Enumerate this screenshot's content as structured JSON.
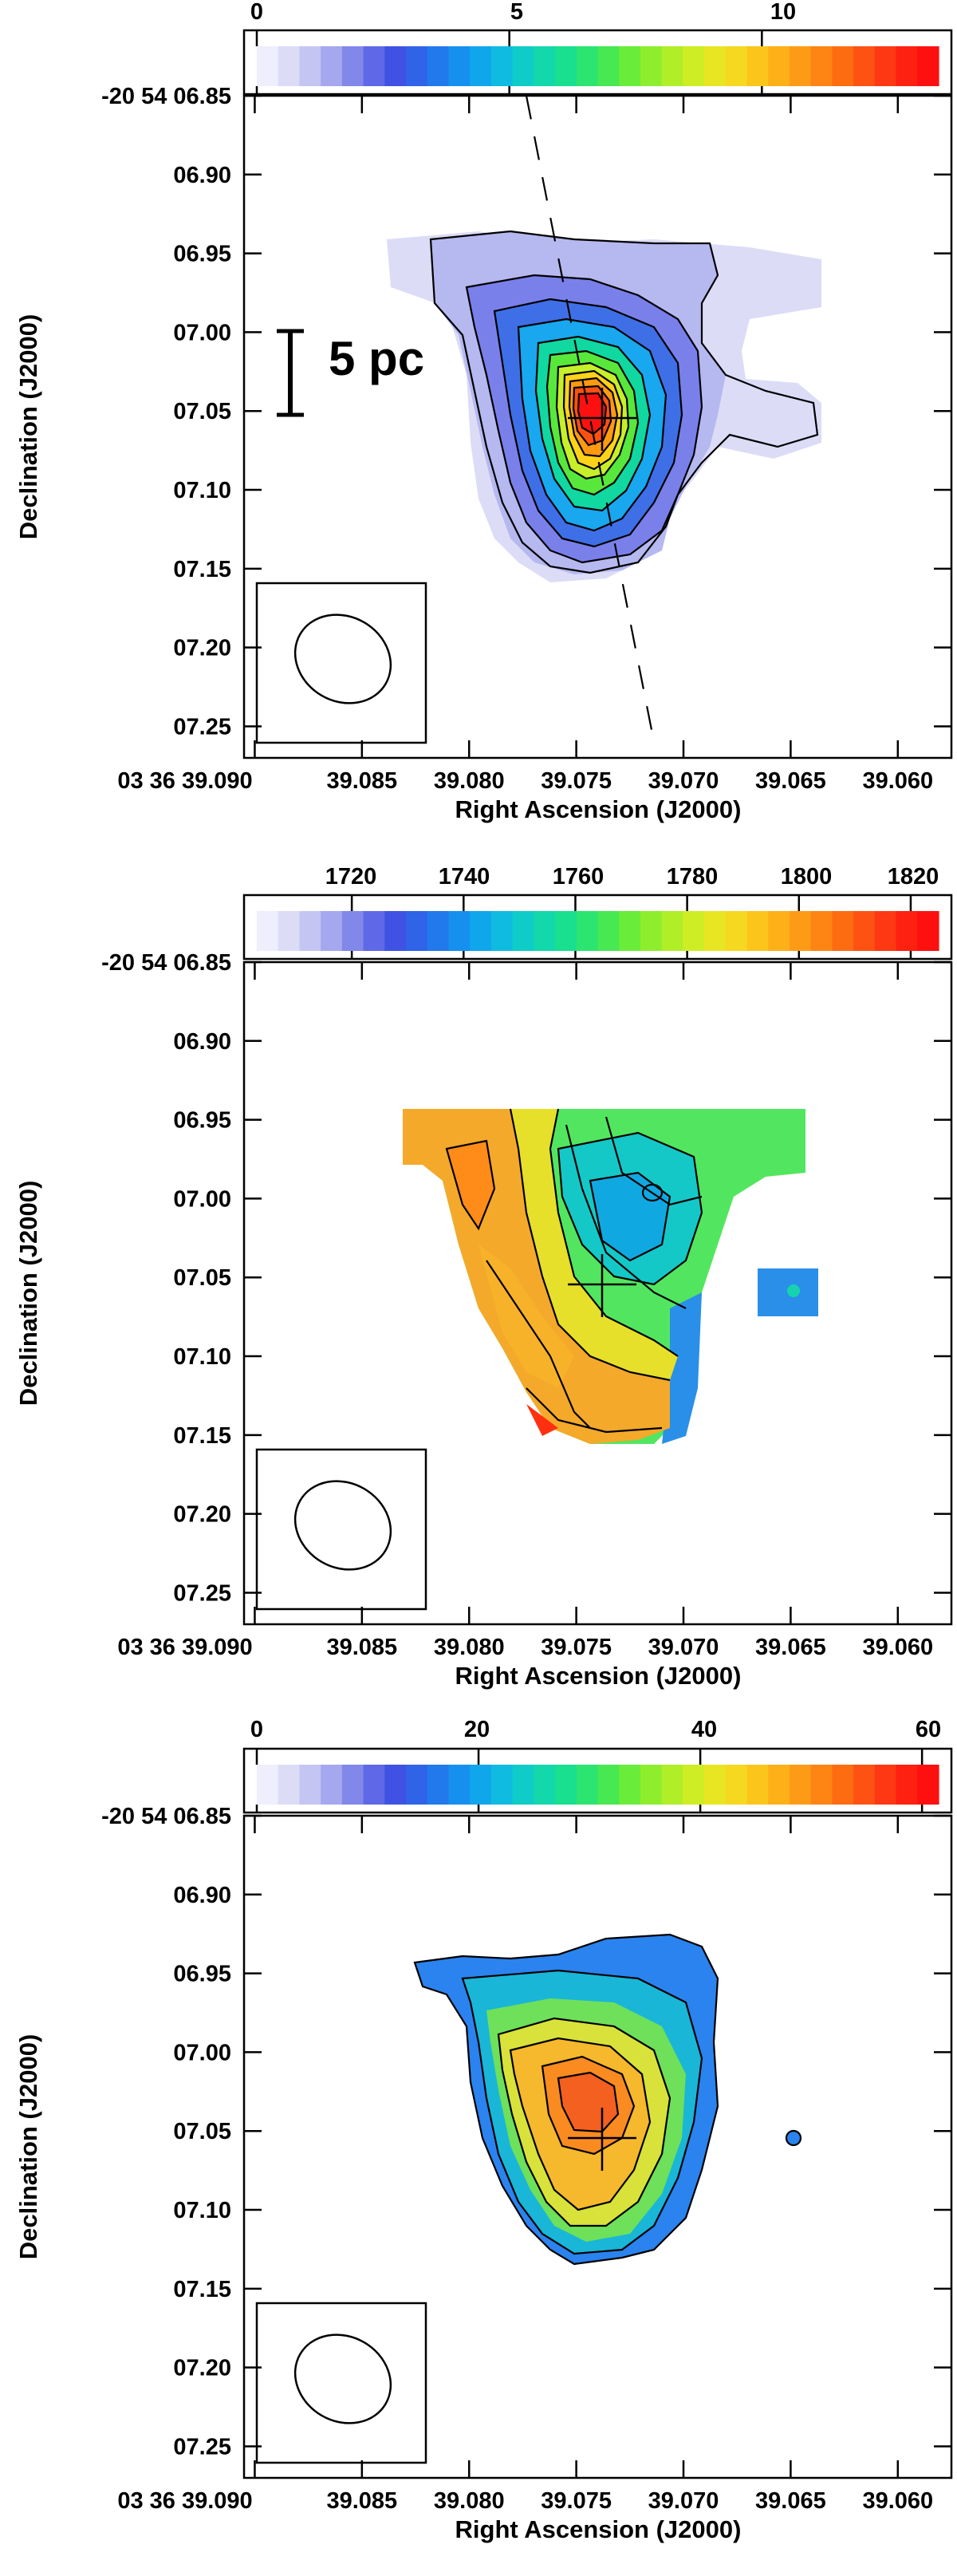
{
  "figure": {
    "panels": [
      {
        "colorbar": {
          "ticks": [
            "0",
            "5",
            "10"
          ],
          "min": 0,
          "max": 13.5
        },
        "ra_ticks": [
          "03 36 39.090",
          "39.085",
          "39.080",
          "39.075",
          "39.070",
          "39.065",
          "39.060"
        ],
        "dec_ticks": [
          "-20 54 06.85",
          "06.90",
          "06.95",
          "07.00",
          "07.05",
          "07.10",
          "07.15",
          "07.20",
          "07.25"
        ],
        "xlabel": "Right Ascension (J2000)",
        "ylabel": "Declination (J2000)",
        "scale_bar": "5 pc",
        "has_major_axis_line": true
      },
      {
        "colorbar": {
          "ticks": [
            "1720",
            "1740",
            "1760",
            "1780",
            "1800",
            "1820"
          ],
          "min": 1703,
          "max": 1825
        },
        "ra_ticks": [
          "03 36 39.090",
          "39.085",
          "39.080",
          "39.075",
          "39.070",
          "39.065",
          "39.060"
        ],
        "dec_ticks": [
          "-20 54 06.85",
          "06.90",
          "06.95",
          "07.00",
          "07.05",
          "07.10",
          "07.15",
          "07.20",
          "07.25"
        ],
        "xlabel": "Right Ascension (J2000)",
        "ylabel": "Declination (J2000)",
        "scale_bar": "",
        "has_major_axis_line": false
      },
      {
        "colorbar": {
          "ticks": [
            "0",
            "20",
            "40",
            "60"
          ],
          "min": 0,
          "max": 61.5
        },
        "ra_ticks": [
          "03 36 39.090",
          "39.085",
          "39.080",
          "39.075",
          "39.070",
          "39.065",
          "39.060"
        ],
        "dec_ticks": [
          "-20 54 06.85",
          "06.90",
          "06.95",
          "07.00",
          "07.05",
          "07.10",
          "07.15",
          "07.20",
          "07.25"
        ],
        "xlabel": "Right Ascension (J2000)",
        "ylabel": "Declination (J2000)",
        "scale_bar": "",
        "has_major_axis_line": false
      }
    ]
  },
  "chart_data": [
    {
      "type": "heatmap",
      "title": "",
      "xlabel": "Right Ascension (J2000)",
      "ylabel": "Declination (J2000)",
      "x_tick_labels": [
        "03 36 39.090",
        "39.085",
        "39.080",
        "39.075",
        "39.070",
        "39.065",
        "39.060"
      ],
      "y_tick_labels": [
        "-20 54 06.85",
        "06.90",
        "06.95",
        "07.00",
        "07.05",
        "07.10",
        "07.15",
        "07.20",
        "07.25"
      ],
      "xlim_seconds": [
        39.0905,
        39.0575
      ],
      "ylim_arcsec": [
        6.85,
        7.27
      ],
      "colorbar_ticks": [
        0,
        5,
        10
      ],
      "colorbar_range": [
        0,
        13.5
      ],
      "peak": {
        "ra_s": 39.0735,
        "dec_s": 7.055,
        "value": 13.2
      },
      "extent": {
        "ra_s": [
          39.0795,
          39.0643
        ],
        "dec_s": [
          6.95,
          7.15
        ]
      },
      "annotation": "5 pc",
      "colors": {
        "low": "#e8e8fb",
        "mid": "#10d8a0",
        "high": "#ff1010"
      }
    },
    {
      "type": "heatmap",
      "title": "",
      "xlabel": "Right Ascension (J2000)",
      "ylabel": "Declination (J2000)",
      "x_tick_labels": [
        "03 36 39.090",
        "39.085",
        "39.080",
        "39.075",
        "39.070",
        "39.065",
        "39.060"
      ],
      "y_tick_labels": [
        "-20 54 06.85",
        "06.90",
        "06.95",
        "07.00",
        "07.05",
        "07.10",
        "07.15",
        "07.20",
        "07.25"
      ],
      "xlim_seconds": [
        39.0905,
        39.0575
      ],
      "ylim_arcsec": [
        6.85,
        7.27
      ],
      "colorbar_ticks": [
        1720,
        1740,
        1760,
        1780,
        1800,
        1820
      ],
      "colorbar_range": [
        1703,
        1825
      ],
      "gradient": {
        "low_side": "north-east",
        "high_side": "south-west",
        "low_value": 1750,
        "high_value": 1800
      }
    },
    {
      "type": "heatmap",
      "title": "",
      "xlabel": "Right Ascension (J2000)",
      "ylabel": "Declination (J2000)",
      "x_tick_labels": [
        "03 36 39.090",
        "39.085",
        "39.080",
        "39.075",
        "39.070",
        "39.065",
        "39.060"
      ],
      "y_tick_labels": [
        "-20 54 06.85",
        "06.90",
        "06.95",
        "07.00",
        "07.05",
        "07.10",
        "07.15",
        "07.20",
        "07.25"
      ],
      "xlim_seconds": [
        39.0905,
        39.0575
      ],
      "ylim_arcsec": [
        6.85,
        7.27
      ],
      "colorbar_ticks": [
        0,
        20,
        40,
        60
      ],
      "colorbar_range": [
        0,
        61.5
      ],
      "peak": {
        "ra_s": 39.0735,
        "dec_s": 7.055,
        "value": 50
      }
    }
  ]
}
